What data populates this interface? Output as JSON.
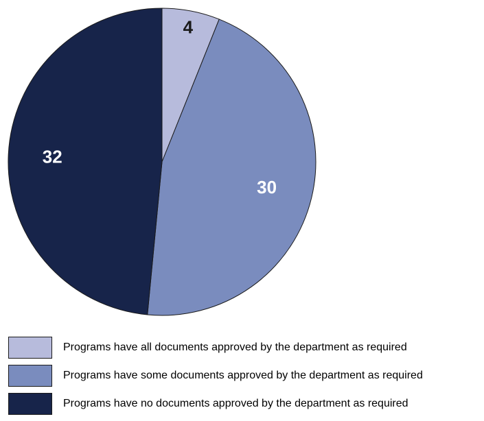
{
  "chart_data": {
    "type": "pie",
    "categories": [
      "Programs have all documents approved by the department as required",
      "Programs have some documents approved by the department as required",
      "Programs have no documents approved by the department as required"
    ],
    "values": [
      4,
      30,
      32
    ],
    "data_labels": [
      "4",
      "30",
      "32"
    ],
    "colors": [
      "#b7bbdc",
      "#7a8cbe",
      "#17244a"
    ],
    "label_colors": [
      "#1a1a1a",
      "#ffffff",
      "#ffffff"
    ],
    "start_angle": "12 o'clock",
    "direction": "clockwise",
    "legend_position": "bottom-left"
  }
}
